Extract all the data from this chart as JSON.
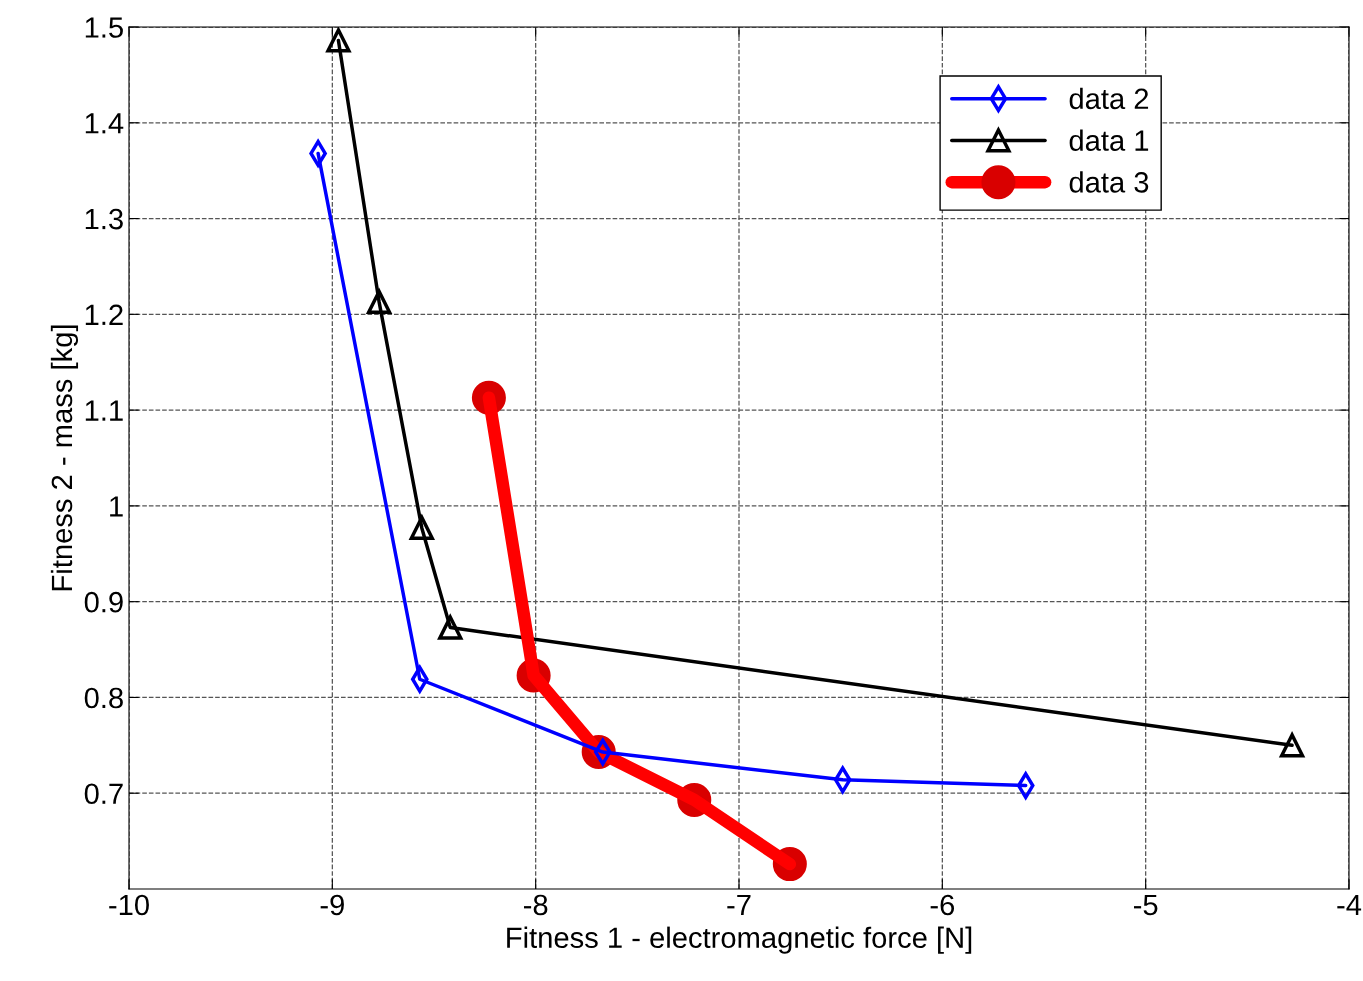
{
  "chart_data": {
    "type": "line",
    "xlabel": "Fitness 1 - electromagnetic force [N]",
    "ylabel": "Fitness 2 - mass [kg]",
    "series": [
      {
        "name": "data 2",
        "color": "#0000ff",
        "marker": "diamond",
        "x": [
          -9.07,
          -8.57,
          -7.67,
          -6.49,
          -5.59
        ],
        "values": [
          1.368,
          0.819,
          0.743,
          0.714,
          0.708
        ]
      },
      {
        "name": "data 1",
        "color": "#000000",
        "marker": "triangle",
        "x": [
          -8.97,
          -8.77,
          -8.56,
          -8.42,
          -4.28
        ],
        "values": [
          1.486,
          1.213,
          0.977,
          0.873,
          0.75
        ]
      },
      {
        "name": "data 3",
        "color": "#ff0000",
        "marker": "circle",
        "x": [
          -8.23,
          -8.01,
          -7.69,
          -7.22,
          -6.75
        ],
        "values": [
          1.113,
          0.823,
          0.743,
          0.693,
          0.626
        ]
      }
    ],
    "xlim": [
      -10,
      -4
    ],
    "xticks": [
      -10,
      -9,
      -8,
      -7,
      -6,
      -5,
      -4
    ],
    "ylim": [
      0.6,
      1.5
    ],
    "yticks": [
      0.7,
      0.8,
      0.9,
      1,
      1.1,
      1.2,
      1.3,
      1.4,
      1.5
    ],
    "grid": true,
    "legend": "top right",
    "line_style": "solid"
  }
}
